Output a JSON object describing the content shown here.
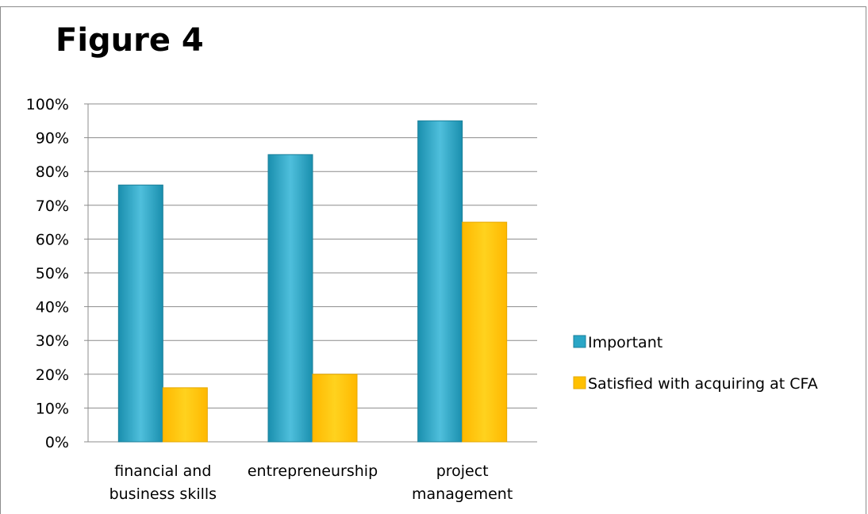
{
  "figure_title": "Figure 4",
  "colors": {
    "important": "#2aa6c6",
    "satisfied": "#ffc000",
    "grid": "#8c8c8c"
  },
  "chart_data": {
    "type": "bar",
    "title": "",
    "xlabel": "",
    "ylabel": "",
    "ylim": [
      0,
      100
    ],
    "y_ticks": [
      "0%",
      "10%",
      "20%",
      "30%",
      "40%",
      "50%",
      "60%",
      "70%",
      "80%",
      "90%",
      "100%"
    ],
    "categories": [
      [
        "financial and",
        "business skills"
      ],
      [
        "entrepreneurship"
      ],
      [
        "project",
        "management"
      ]
    ],
    "series": [
      {
        "name": "Important",
        "values": [
          76,
          85,
          95
        ]
      },
      {
        "name": "Satisfied with acquiring at CFA",
        "values": [
          16,
          20,
          65
        ]
      }
    ],
    "grid": true,
    "legend_position": "right"
  }
}
